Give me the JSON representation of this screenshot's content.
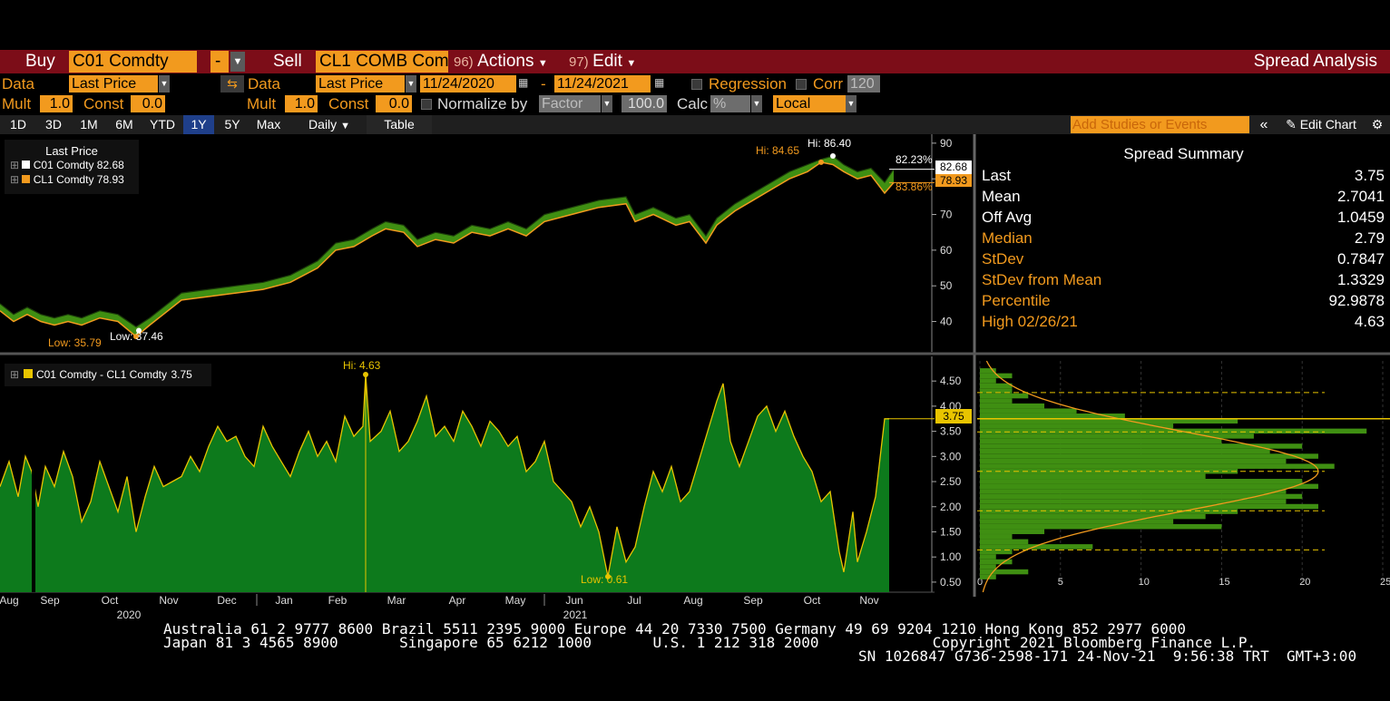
{
  "toolbar": {
    "buy_label": "Buy",
    "buy_ticker": "C01 Comdty",
    "buy_dropdown": "-",
    "sell_label": "Sell",
    "sell_ticker": "CL1 COMB Com",
    "actions_num": "96)",
    "actions_label": "Actions",
    "edit_num": "97)",
    "edit_label": "Edit",
    "title": "Spread Analysis"
  },
  "row1": {
    "data_label": "Data",
    "data_value": "Last Price",
    "data2_label": "Data",
    "data2_value": "Last Price",
    "date_from": "11/24/2020",
    "date_sep": "-",
    "date_to": "11/24/2021",
    "regression_label": "Regression",
    "corr_label": "Corr",
    "corr_value": "120"
  },
  "row2": {
    "mult_label": "Mult",
    "mult_value": "1.0",
    "const_label": "Const",
    "const_value": "0.0",
    "mult2_label": "Mult",
    "mult2_value": "1.0",
    "const2_label": "Const",
    "const2_value": "0.0",
    "normalize_label": "Normalize by",
    "normalize_value": "Factor",
    "factor_value": "100.0",
    "calc_label": "Calc",
    "calc_value": "%",
    "local_value": "Local"
  },
  "ranges": {
    "buttons": [
      "1D",
      "3D",
      "1M",
      "6M",
      "YTD",
      "1Y",
      "5Y",
      "Max"
    ],
    "selected": "1Y",
    "period": "Daily",
    "table_label": "Table",
    "studies_placeholder": "Add Studies or Events",
    "edit_chart_label": "Edit Chart"
  },
  "colors": {
    "accent": "#f29a1e",
    "bar_red": "#7c0d18",
    "spread_fill": "#0d7a1c",
    "spread_line": "#e8c400",
    "c01": "#ffffff",
    "cl1": "#f29a1e"
  },
  "price_chart": {
    "legend_title": "Last Price",
    "series": [
      {
        "name": "C01 Comdty",
        "last": "82.68"
      },
      {
        "name": "CL1 Comdty",
        "last": "78.93"
      }
    ],
    "hi_c01": "Hi: 86.40",
    "hi_cl1": "Hi: 84.65",
    "low_c01": "Low: 37.46",
    "low_cl1": "Low: 35.79",
    "right_pct_white": "82.23%",
    "right_pct_orange": "83.86%",
    "last_white": "82.68",
    "last_orange": "78.93"
  },
  "spread_chart": {
    "legend": "C01 Comdty - CL1 Comdty",
    "legend_value": "3.75",
    "hi_label": "Hi: 4.63",
    "low_label": "Low: 0.61",
    "last_tag": "3.75"
  },
  "summary": {
    "title": "Spread Summary",
    "rows": [
      {
        "label": "Last",
        "value": "3.75",
        "color": "#ffffff"
      },
      {
        "label": "Mean",
        "value": "2.7041",
        "color": "#ffffff"
      },
      {
        "label": "Off Avg",
        "value": "1.0459",
        "color": "#ffffff"
      },
      {
        "label": "Median",
        "value": "2.79",
        "color": "#f29a1e"
      },
      {
        "label": "StDev",
        "value": "0.7847",
        "color": "#f29a1e"
      },
      {
        "label": "StDev from Mean",
        "value": "1.3329",
        "color": "#f29a1e"
      },
      {
        "label": "Percentile",
        "value": "92.9878",
        "color": "#f29a1e"
      },
      {
        "label": "High 02/26/21",
        "value": "4.63",
        "color": "#f29a1e"
      }
    ]
  },
  "chart_data": [
    {
      "type": "line",
      "title": "",
      "x_range": [
        "2020-08-20",
        "2021-11-24"
      ],
      "x_ticks": [
        "Aug",
        "Sep",
        "Oct",
        "Nov",
        "Dec",
        "Jan",
        "Feb",
        "Mar",
        "Apr",
        "May",
        "Jun",
        "Jul",
        "Aug",
        "Sep",
        "Oct",
        "Nov"
      ],
      "x_year_labels": [
        "2020",
        "2021"
      ],
      "y_ticks": [
        "40",
        "50",
        "60",
        "70",
        "80",
        "90"
      ],
      "ylim": [
        32,
        92
      ],
      "legend_placement": "top-left",
      "series": [
        {
          "name": "C01 Comdty",
          "points": [
            [
              0,
              45
            ],
            [
              15,
              42
            ],
            [
              30,
              44
            ],
            [
              45,
              42
            ],
            [
              60,
              41
            ],
            [
              75,
              42
            ],
            [
              90,
              41
            ],
            [
              110,
              43
            ],
            [
              130,
              42
            ],
            [
              150,
              38.5
            ],
            [
              165,
              41
            ],
            [
              180,
              44
            ],
            [
              200,
              48
            ],
            [
              230,
              49
            ],
            [
              260,
              50
            ],
            [
              290,
              51
            ],
            [
              320,
              53
            ],
            [
              350,
              57
            ],
            [
              370,
              62
            ],
            [
              390,
              63
            ],
            [
              410,
              66
            ],
            [
              425,
              68
            ],
            [
              445,
              67
            ],
            [
              460,
              63
            ],
            [
              480,
              65
            ],
            [
              500,
              64
            ],
            [
              520,
              67
            ],
            [
              540,
              66
            ],
            [
              560,
              68
            ],
            [
              580,
              66
            ],
            [
              600,
              70
            ],
            [
              630,
              72
            ],
            [
              660,
              74
            ],
            [
              690,
              75
            ],
            [
              700,
              70
            ],
            [
              720,
              72
            ],
            [
              745,
              69
            ],
            [
              760,
              70
            ],
            [
              778,
              64
            ],
            [
              790,
              69
            ],
            [
              810,
              73
            ],
            [
              830,
              76
            ],
            [
              850,
              79
            ],
            [
              870,
              82
            ],
            [
              890,
              84
            ],
            [
              905,
              85.5
            ],
            [
              918,
              86.4
            ],
            [
              930,
              84
            ],
            [
              945,
              82
            ],
            [
              960,
              83
            ],
            [
              975,
              79
            ],
            [
              985,
              82.68
            ]
          ]
        },
        {
          "name": "CL1 Comdty",
          "points": [
            [
              0,
              43
            ],
            [
              15,
              40
            ],
            [
              30,
              42
            ],
            [
              45,
              40
            ],
            [
              60,
              39
            ],
            [
              75,
              40
            ],
            [
              90,
              39
            ],
            [
              110,
              41
            ],
            [
              130,
              40
            ],
            [
              150,
              35.79
            ],
            [
              165,
              39
            ],
            [
              180,
              42
            ],
            [
              200,
              46
            ],
            [
              230,
              47
            ],
            [
              260,
              48
            ],
            [
              290,
              49
            ],
            [
              320,
              51
            ],
            [
              350,
              55
            ],
            [
              370,
              60
            ],
            [
              390,
              61
            ],
            [
              410,
              64
            ],
            [
              425,
              66
            ],
            [
              445,
              65
            ],
            [
              460,
              61
            ],
            [
              480,
              63
            ],
            [
              500,
              62
            ],
            [
              520,
              65
            ],
            [
              540,
              64
            ],
            [
              560,
              66
            ],
            [
              580,
              64
            ],
            [
              600,
              68
            ],
            [
              630,
              70
            ],
            [
              660,
              72
            ],
            [
              690,
              73
            ],
            [
              700,
              68
            ],
            [
              720,
              70
            ],
            [
              745,
              67
            ],
            [
              760,
              68
            ],
            [
              778,
              62
            ],
            [
              790,
              67
            ],
            [
              810,
              71
            ],
            [
              830,
              74
            ],
            [
              850,
              77
            ],
            [
              870,
              80
            ],
            [
              890,
              82
            ],
            [
              905,
              84.65
            ],
            [
              918,
              84
            ],
            [
              930,
              82
            ],
            [
              945,
              80
            ],
            [
              960,
              81
            ],
            [
              975,
              76
            ],
            [
              985,
              78.93
            ]
          ]
        }
      ]
    },
    {
      "type": "area",
      "title": "",
      "x_range": [
        "2020-08-20",
        "2021-11-24"
      ],
      "y_ticks": [
        "0.50",
        "1.00",
        "1.50",
        "2.00",
        "2.50",
        "3.00",
        "3.50",
        "4.00",
        "4.50"
      ],
      "ylim": [
        0.3,
        4.9
      ],
      "series": [
        {
          "name": "C01 Comdty - CL1 Comdty",
          "points": [
            [
              0,
              2.4
            ],
            [
              10,
              2.9
            ],
            [
              20,
              2.2
            ],
            [
              28,
              3.0
            ],
            [
              35,
              2.7
            ],
            [
              42,
              2.0
            ],
            [
              50,
              2.8
            ],
            [
              60,
              2.4
            ],
            [
              70,
              3.1
            ],
            [
              80,
              2.6
            ],
            [
              90,
              1.7
            ],
            [
              100,
              2.1
            ],
            [
              110,
              2.9
            ],
            [
              120,
              2.4
            ],
            [
              130,
              1.9
            ],
            [
              140,
              2.6
            ],
            [
              150,
              1.5
            ],
            [
              160,
              2.2
            ],
            [
              170,
              2.8
            ],
            [
              180,
              2.4
            ],
            [
              190,
              2.5
            ],
            [
              200,
              2.6
            ],
            [
              210,
              3.0
            ],
            [
              220,
              2.7
            ],
            [
              230,
              3.2
            ],
            [
              240,
              3.6
            ],
            [
              250,
              3.3
            ],
            [
              260,
              3.4
            ],
            [
              270,
              3.0
            ],
            [
              280,
              2.8
            ],
            [
              290,
              3.6
            ],
            [
              300,
              3.2
            ],
            [
              310,
              2.9
            ],
            [
              320,
              2.6
            ],
            [
              330,
              3.1
            ],
            [
              340,
              3.5
            ],
            [
              350,
              3.0
            ],
            [
              360,
              3.3
            ],
            [
              370,
              2.9
            ],
            [
              380,
              3.8
            ],
            [
              390,
              3.4
            ],
            [
              400,
              3.6
            ],
            [
              403,
              4.63
            ],
            [
              408,
              3.3
            ],
            [
              420,
              3.5
            ],
            [
              430,
              3.9
            ],
            [
              440,
              3.1
            ],
            [
              450,
              3.3
            ],
            [
              460,
              3.7
            ],
            [
              470,
              4.2
            ],
            [
              480,
              3.4
            ],
            [
              490,
              3.6
            ],
            [
              500,
              3.3
            ],
            [
              510,
              3.9
            ],
            [
              520,
              3.6
            ],
            [
              530,
              3.2
            ],
            [
              540,
              3.7
            ],
            [
              550,
              3.5
            ],
            [
              560,
              3.2
            ],
            [
              570,
              3.4
            ],
            [
              580,
              2.7
            ],
            [
              590,
              2.9
            ],
            [
              600,
              3.3
            ],
            [
              610,
              2.5
            ],
            [
              620,
              2.3
            ],
            [
              630,
              2.1
            ],
            [
              640,
              1.6
            ],
            [
              650,
              2.0
            ],
            [
              660,
              1.5
            ],
            [
              670,
              0.61
            ],
            [
              680,
              1.6
            ],
            [
              690,
              0.9
            ],
            [
              700,
              1.2
            ],
            [
              710,
              2.0
            ],
            [
              720,
              2.7
            ],
            [
              730,
              2.3
            ],
            [
              740,
              2.8
            ],
            [
              750,
              2.1
            ],
            [
              760,
              2.3
            ],
            [
              770,
              2.9
            ],
            [
              780,
              3.5
            ],
            [
              790,
              4.1
            ],
            [
              797,
              4.45
            ],
            [
              805,
              3.3
            ],
            [
              815,
              2.8
            ],
            [
              825,
              3.3
            ],
            [
              835,
              3.8
            ],
            [
              845,
              4.0
            ],
            [
              855,
              3.5
            ],
            [
              865,
              3.9
            ],
            [
              875,
              3.4
            ],
            [
              885,
              3.0
            ],
            [
              895,
              2.7
            ],
            [
              905,
              2.1
            ],
            [
              915,
              2.3
            ],
            [
              925,
              1.1
            ],
            [
              930,
              0.7
            ],
            [
              940,
              1.9
            ],
            [
              945,
              0.9
            ],
            [
              955,
              1.5
            ],
            [
              965,
              2.2
            ],
            [
              975,
              3.75
            ],
            [
              980,
              3.75
            ]
          ]
        }
      ]
    },
    {
      "type": "bar",
      "title": "",
      "orientation": "horizontal",
      "x_ticks": [
        "0",
        "5",
        "10",
        "15",
        "20",
        "25"
      ],
      "xlim": [
        0,
        25
      ],
      "bins": [
        4.7,
        4.6,
        4.5,
        4.4,
        4.3,
        4.2,
        4.1,
        4.0,
        3.9,
        3.8,
        3.7,
        3.6,
        3.5,
        3.4,
        3.3,
        3.2,
        3.1,
        3.0,
        2.9,
        2.8,
        2.7,
        2.6,
        2.5,
        2.4,
        2.3,
        2.2,
        2.1,
        2.0,
        1.9,
        1.8,
        1.7,
        1.6,
        1.5,
        1.4,
        1.3,
        1.2,
        1.1,
        1.0,
        0.9,
        0.8,
        0.7,
        0.6
      ],
      "values": [
        1,
        2,
        1,
        2,
        2,
        3,
        2,
        4,
        6,
        9,
        16,
        12,
        24,
        17,
        15,
        20,
        18,
        21,
        19,
        22,
        16,
        14,
        20,
        21,
        19,
        20,
        19,
        21,
        16,
        14,
        12,
        15,
        4,
        2,
        3,
        7,
        2,
        1,
        2,
        1,
        3,
        1
      ]
    }
  ],
  "footer": {
    "line1": "Australia 61 2 9777 8600 Brazil 5511 2395 9000 Europe 44 20 7330 7500 Germany 49 69 9204 1210 Hong Kong 852 2977 6000",
    "line2": "Japan 81 3 4565 8900       Singapore 65 6212 1000       U.S. 1 212 318 2000             Copyright 2021 Bloomberg Finance L.P.",
    "line3": "SN 1026847 G736-2598-171 24-Nov-21  9:56:38 TRT  GMT+3:00"
  }
}
